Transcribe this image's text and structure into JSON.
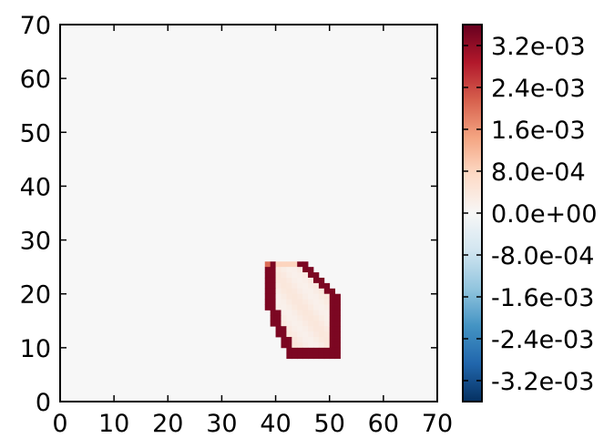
{
  "chart_data": {
    "type": "heatmap",
    "title": "",
    "xlabel": "",
    "ylabel": "",
    "xlim": [
      0,
      70
    ],
    "ylim": [
      0,
      70
    ],
    "x_ticks": [
      0,
      10,
      20,
      30,
      40,
      50,
      60,
      70
    ],
    "y_ticks": [
      0,
      10,
      20,
      30,
      40,
      50,
      60,
      70
    ],
    "x_tick_labels": [
      "0",
      "10",
      "20",
      "30",
      "40",
      "50",
      "60",
      "70"
    ],
    "y_tick_labels": [
      "0",
      "10",
      "20",
      "30",
      "40",
      "50",
      "60",
      "70"
    ],
    "grid": false,
    "background_value": 0.0,
    "colormap": "RdBu_r",
    "colormap_stops": [
      "#053061",
      "#2166ac",
      "#4393c3",
      "#92c5de",
      "#d1e5f0",
      "#f7f7f7",
      "#fddbc7",
      "#f4a582",
      "#d6604d",
      "#b2182b",
      "#67001f"
    ],
    "color_range": [
      -0.0036,
      0.0036
    ],
    "colorbar_ticks": [
      0.0032,
      0.0024,
      0.0016,
      0.0008,
      0.0,
      -0.0008,
      -0.0016,
      -0.0024,
      -0.0032
    ],
    "colorbar_tick_labels": [
      "3.2e-03",
      "2.4e-03",
      "1.6e-03",
      "8.0e-04",
      "0.0e+00",
      "-8.0e-04",
      "-1.6e-03",
      "-2.4e-03",
      "-3.2e-03"
    ],
    "region": {
      "description_value_interior": 0.00025,
      "rows": [
        {
          "y": 25,
          "x0": 38,
          "x1": 46
        },
        {
          "y": 24,
          "x0": 38,
          "x1": 47
        },
        {
          "y": 23,
          "x0": 38,
          "x1": 48
        },
        {
          "y": 22,
          "x0": 38,
          "x1": 49
        },
        {
          "y": 21,
          "x0": 38,
          "x1": 50
        },
        {
          "y": 20,
          "x0": 38,
          "x1": 51
        },
        {
          "y": 19,
          "x0": 38,
          "x1": 52
        },
        {
          "y": 18,
          "x0": 38,
          "x1": 52
        },
        {
          "y": 17,
          "x0": 38,
          "x1": 52
        },
        {
          "y": 16,
          "x0": 39,
          "x1": 52
        },
        {
          "y": 15,
          "x0": 39,
          "x1": 52
        },
        {
          "y": 14,
          "x0": 39,
          "x1": 52
        },
        {
          "y": 13,
          "x0": 40,
          "x1": 52
        },
        {
          "y": 12,
          "x0": 40,
          "x1": 52
        },
        {
          "y": 11,
          "x0": 41,
          "x1": 52
        },
        {
          "y": 10,
          "x0": 41,
          "x1": 52
        },
        {
          "y": 9,
          "x0": 42,
          "x1": 52
        },
        {
          "y": 8,
          "x0": 42,
          "x1": 52
        }
      ],
      "interior_value": 0.0003,
      "edge_left_value": 0.0034,
      "edge_right_value": 0.0034,
      "edge_bottom_value": 0.0034,
      "edge_top_value": 0.0008
    }
  }
}
